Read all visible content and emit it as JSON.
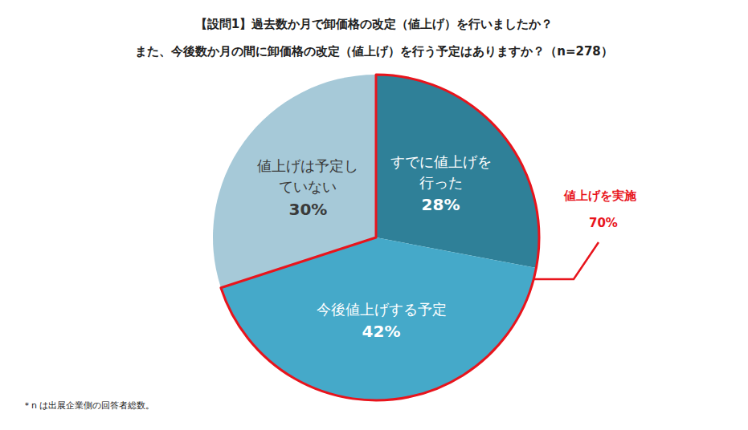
{
  "chart_data": {
    "type": "pie",
    "title": [
      "【設問1】過去数か月で卸価格の改定（値上げ）を行いましたか？",
      "また、今後数か月の間に卸価格の改定（値上げ）を行う予定はありますか？（n=278）"
    ],
    "categories": [
      "すでに値上げを\n行った",
      "今後値上げする予定",
      "値上げは予定し\nていない"
    ],
    "values": [
      28,
      42,
      30
    ],
    "value_labels": [
      "28%",
      "42%",
      "30%"
    ],
    "colors": [
      "#2f8098",
      "#45a9c9",
      "#a6c9d8"
    ],
    "data_labels": true,
    "annotation": {
      "text": "値上げを実施",
      "value": 70,
      "value_label": "70%",
      "color": "#e8141c"
    },
    "footnote": "＊n は出展企業側の回答者総数。"
  }
}
